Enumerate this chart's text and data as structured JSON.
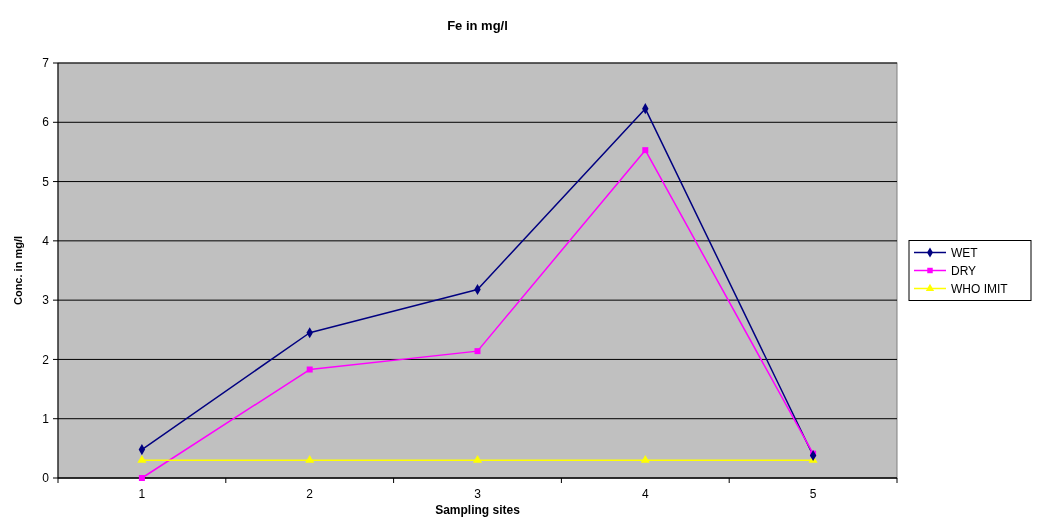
{
  "chart_data": {
    "type": "line",
    "title": "Fe in mg/l",
    "xlabel": "Sampling sites",
    "ylabel": "Conc. in mg/l",
    "categories": [
      "1",
      "2",
      "3",
      "4",
      "5"
    ],
    "series": [
      {
        "name": "WET",
        "color": "#000080",
        "marker": "diamond",
        "values": [
          0.48,
          2.45,
          3.18,
          6.23,
          0.38
        ]
      },
      {
        "name": "DRY",
        "color": "#ff00ff",
        "marker": "square",
        "values": [
          0,
          1.83,
          2.14,
          5.53,
          0.41
        ]
      },
      {
        "name": "WHO IMIT",
        "color": "#ffff00",
        "marker": "triangle",
        "values": [
          0.3,
          0.3,
          0.3,
          0.3,
          0.3
        ]
      }
    ],
    "ylim": [
      0,
      7
    ],
    "yticks": [
      0,
      1,
      2,
      3,
      4,
      5,
      6,
      7
    ],
    "grid": "y",
    "legend": "right"
  }
}
